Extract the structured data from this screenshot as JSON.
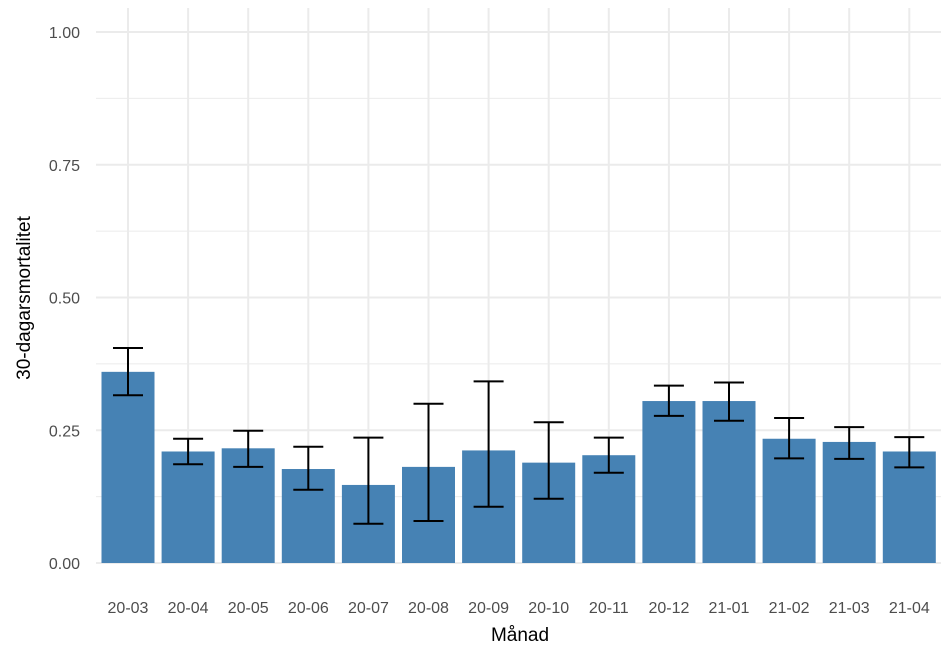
{
  "chart_data": {
    "type": "bar",
    "xlabel": "Månad",
    "ylabel": "30-dagarsmortalitet",
    "ylim": [
      0,
      1
    ],
    "y_ticks": [
      0,
      0.25,
      0.5,
      0.75,
      1
    ],
    "y_tick_labels": [
      "0.00",
      "0.25",
      "0.50",
      "0.75",
      "1.00"
    ],
    "grid": true,
    "legend": "none",
    "bar_color": "#4682b4",
    "categories": [
      "20-03",
      "20-04",
      "20-05",
      "20-06",
      "20-07",
      "20-08",
      "20-09",
      "20-10",
      "20-11",
      "20-12",
      "21-01",
      "21-02",
      "21-03",
      "21-04"
    ],
    "values": [
      0.36,
      0.21,
      0.216,
      0.177,
      0.147,
      0.181,
      0.212,
      0.189,
      0.203,
      0.305,
      0.305,
      0.234,
      0.228,
      0.21
    ],
    "error_lower": [
      0.316,
      0.186,
      0.181,
      0.138,
      0.074,
      0.079,
      0.106,
      0.121,
      0.17,
      0.277,
      0.268,
      0.197,
      0.196,
      0.18
    ],
    "error_upper": [
      0.405,
      0.234,
      0.249,
      0.219,
      0.236,
      0.3,
      0.342,
      0.265,
      0.236,
      0.334,
      0.34,
      0.273,
      0.256,
      0.237
    ]
  }
}
